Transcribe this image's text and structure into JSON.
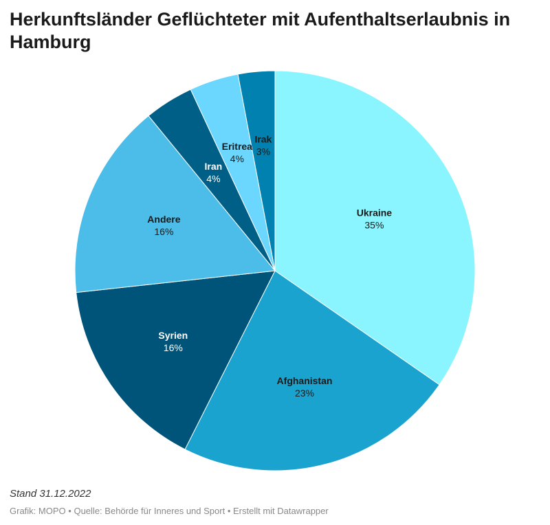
{
  "title": "Herkunftsländer Geflüchteter mit Aufenthaltserlaubnis in Hamburg",
  "note": "Stand 31.12.2022",
  "footer": {
    "prefix": "Grafik:",
    "author": "MOPO",
    "sep1": "•",
    "source_label": "Quelle:",
    "source": "Behörde für Inneres und Sport",
    "sep2": "•",
    "tool": "Erstellt mit Datawrapper"
  },
  "chart_data": {
    "type": "pie",
    "title": "Herkunftsländer Geflüchteter mit Aufenthaltserlaubnis in Hamburg",
    "unit": "%",
    "slices": [
      {
        "label": "Ukraine",
        "value": 35,
        "value_label": "35%",
        "color": "#8af5fe",
        "text_color": "#1a1a1a"
      },
      {
        "label": "Afghanistan",
        "value": 23,
        "value_label": "23%",
        "color": "#1aa3ce",
        "text_color": "#1a1a1a"
      },
      {
        "label": "Syrien",
        "value": 16,
        "value_label": "16%",
        "color": "#005479",
        "text_color": "#ffffff"
      },
      {
        "label": "Andere",
        "value": 16,
        "value_label": "16%",
        "color": "#4cbde8",
        "text_color": "#1a1a1a"
      },
      {
        "label": "Iran",
        "value": 4,
        "value_label": "4%",
        "color": "#005f86",
        "text_color": "#ffffff"
      },
      {
        "label": "Eritrea",
        "value": 4,
        "value_label": "4%",
        "color": "#6bd7ff",
        "text_color": "#1a1a1a"
      },
      {
        "label": "Irak",
        "value": 3,
        "value_label": "3%",
        "color": "#0081af",
        "text_color": "#1a1a1a"
      }
    ]
  }
}
